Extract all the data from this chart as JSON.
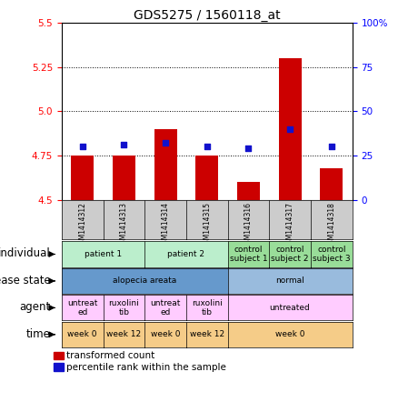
{
  "title": "GDS5275 / 1560118_at",
  "samples": [
    "GSM1414312",
    "GSM1414313",
    "GSM1414314",
    "GSM1414315",
    "GSM1414316",
    "GSM1414317",
    "GSM1414318"
  ],
  "bar_values": [
    4.75,
    4.75,
    4.9,
    4.75,
    4.6,
    5.3,
    4.68
  ],
  "dot_values": [
    30,
    31,
    32,
    30,
    29,
    40,
    30
  ],
  "ylim_left": [
    4.5,
    5.5
  ],
  "ylim_right": [
    0,
    100
  ],
  "yticks_left": [
    4.5,
    4.75,
    5.0,
    5.25,
    5.5
  ],
  "yticks_right": [
    0,
    25,
    50,
    75,
    100
  ],
  "hlines": [
    4.75,
    5.0,
    5.25
  ],
  "bar_color": "#cc0000",
  "dot_color": "#1111cc",
  "bar_width": 0.55,
  "rows": {
    "individual": {
      "label": "individual",
      "cells": [
        {
          "text": "patient 1",
          "span": [
            0,
            1
          ],
          "color": "#bbeecc"
        },
        {
          "text": "patient 2",
          "span": [
            2,
            3
          ],
          "color": "#bbeecc"
        },
        {
          "text": "control\nsubject 1",
          "span": [
            4,
            4
          ],
          "color": "#99dd99"
        },
        {
          "text": "control\nsubject 2",
          "span": [
            5,
            5
          ],
          "color": "#99dd99"
        },
        {
          "text": "control\nsubject 3",
          "span": [
            6,
            6
          ],
          "color": "#99dd99"
        }
      ]
    },
    "disease_state": {
      "label": "disease state",
      "cells": [
        {
          "text": "alopecia areata",
          "span": [
            0,
            3
          ],
          "color": "#6699cc"
        },
        {
          "text": "normal",
          "span": [
            4,
            6
          ],
          "color": "#99bbdd"
        }
      ]
    },
    "agent": {
      "label": "agent",
      "cells": [
        {
          "text": "untreat\ned",
          "span": [
            0,
            0
          ],
          "color": "#ffccff"
        },
        {
          "text": "ruxolini\ntib",
          "span": [
            1,
            1
          ],
          "color": "#ffccff"
        },
        {
          "text": "untreat\ned",
          "span": [
            2,
            2
          ],
          "color": "#ffccff"
        },
        {
          "text": "ruxolini\ntib",
          "span": [
            3,
            3
          ],
          "color": "#ffccff"
        },
        {
          "text": "untreated",
          "span": [
            4,
            6
          ],
          "color": "#ffccff"
        }
      ]
    },
    "time": {
      "label": "time",
      "cells": [
        {
          "text": "week 0",
          "span": [
            0,
            0
          ],
          "color": "#f5cc88"
        },
        {
          "text": "week 12",
          "span": [
            1,
            1
          ],
          "color": "#f5cc88"
        },
        {
          "text": "week 0",
          "span": [
            2,
            2
          ],
          "color": "#f5cc88"
        },
        {
          "text": "week 12",
          "span": [
            3,
            3
          ],
          "color": "#f5cc88"
        },
        {
          "text": "week 0",
          "span": [
            4,
            6
          ],
          "color": "#f5cc88"
        }
      ]
    }
  },
  "legend_items": [
    {
      "color": "#cc0000",
      "label": "transformed count"
    },
    {
      "color": "#1111cc",
      "label": "percentile rank within the sample"
    }
  ],
  "title_fontsize": 10,
  "tick_fontsize": 7.5,
  "label_fontsize": 8.5,
  "cell_fontsize": 6.5,
  "legend_fontsize": 7.5
}
